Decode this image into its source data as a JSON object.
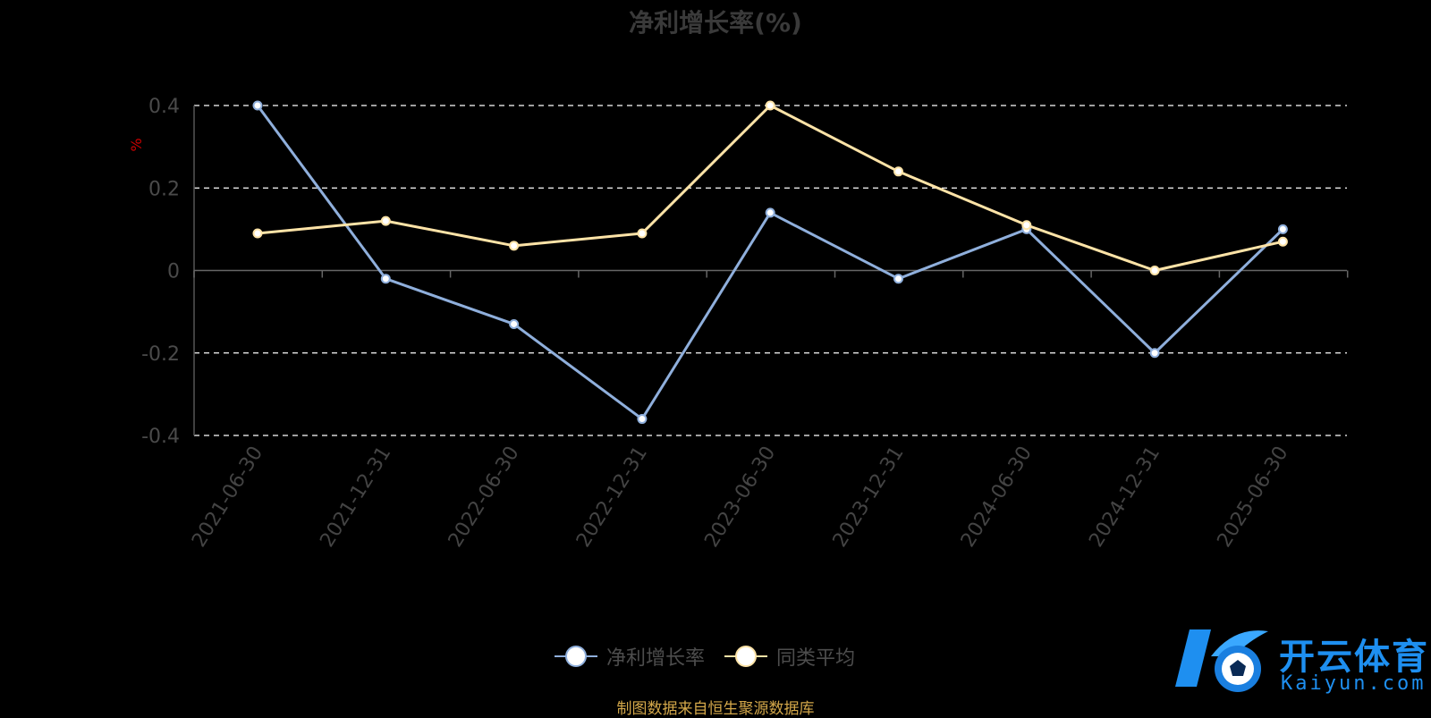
{
  "chart_data": {
    "type": "line",
    "title": "净利增长率(%)",
    "ylabel": "%",
    "ylim": [
      -0.4,
      0.4
    ],
    "yticks": [
      "0.4",
      "0.2",
      "0",
      "-0.2",
      "-0.4"
    ],
    "ytick_values": [
      0.4,
      0.2,
      0,
      -0.2,
      -0.4
    ],
    "categories": [
      "2021-06-30",
      "2021-12-31",
      "2022-06-30",
      "2022-12-31",
      "2023-06-30",
      "2023-12-31",
      "2024-06-30",
      "2024-12-31",
      "2025-06-30"
    ],
    "series": [
      {
        "name": "净利增长率",
        "color": "#8fafdc",
        "values": [
          0.4,
          -0.02,
          -0.13,
          -0.36,
          0.14,
          -0.02,
          0.1,
          -0.2,
          0.1
        ]
      },
      {
        "name": "同类平均",
        "color": "#fde3a7",
        "values": [
          0.09,
          0.12,
          0.06,
          0.09,
          0.4,
          0.24,
          0.11,
          0.0,
          0.07
        ]
      }
    ],
    "grid": true,
    "legend_position": "bottom-center"
  },
  "legend": {
    "items": [
      "净利增长率",
      "同类平均"
    ]
  },
  "source_note": "制图数据来自恒生聚源数据库",
  "watermark": {
    "cn": "开云体育",
    "en": "Kaiyun.com"
  }
}
